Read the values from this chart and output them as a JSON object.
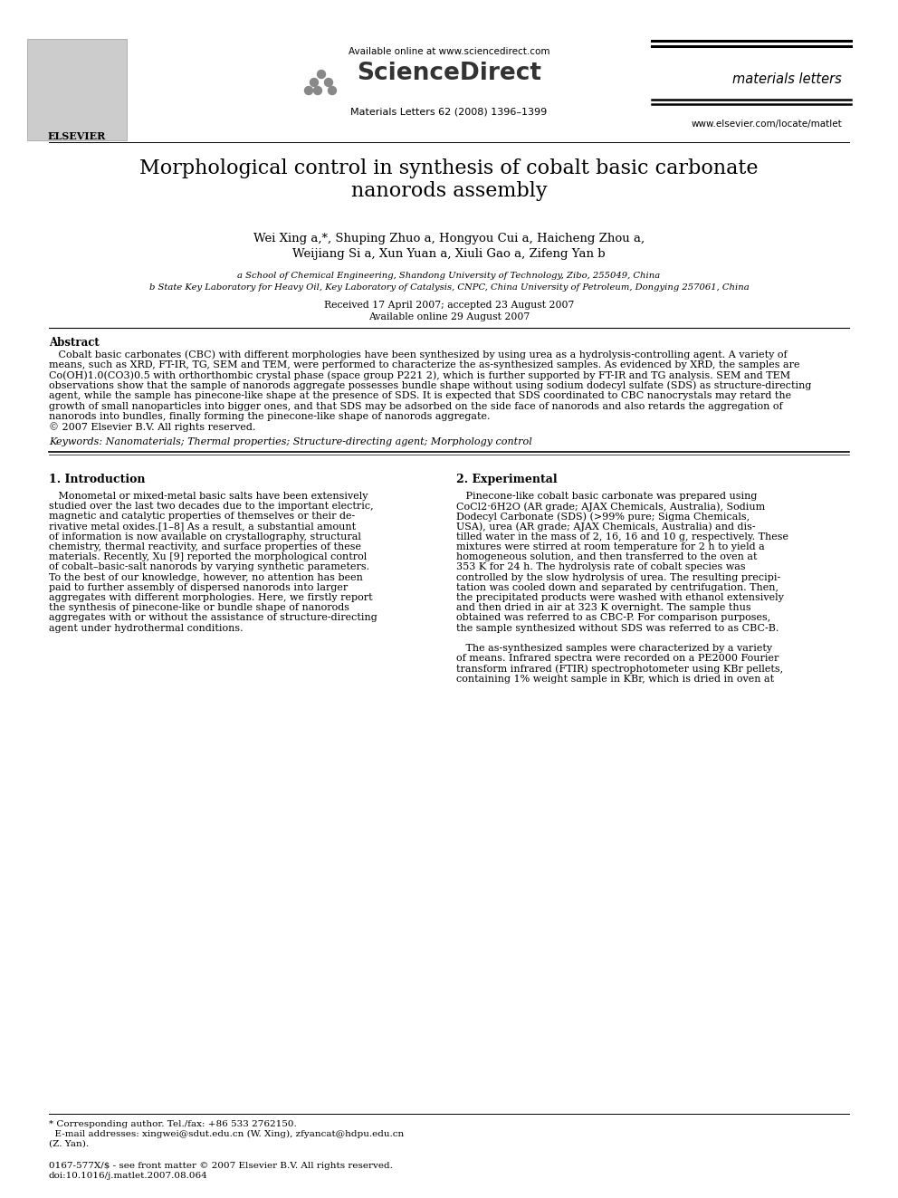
{
  "bg_color": "#ffffff",
  "header": {
    "available_online": "Available online at www.sciencedirect.com",
    "journal_name": "materials letters",
    "journal_info": "Materials Letters 62 (2008) 1396–1399",
    "journal_url": "www.elsevier.com/locate/matlet"
  },
  "title": "Morphological control in synthesis of cobalt basic carbonate\nnanorods assembly",
  "authors_line1": "Wei Xing a,*, Shuping Zhuo a, Hongyou Cui a, Haicheng Zhou a,",
  "authors_line2": "Weijiang Si a, Xun Yuan a, Xiuli Gao a, Zifeng Yan b",
  "affil_a": "a School of Chemical Engineering, Shandong University of Technology, Zibo, 255049, China",
  "affil_b": "b State Key Laboratory for Heavy Oil, Key Laboratory of Catalysis, CNPC, China University of Petroleum, Dongying 257061, China",
  "dates_line1": "Received 17 April 2007; accepted 23 August 2007",
  "dates_line2": "Available online 29 August 2007",
  "abstract_title": "Abstract",
  "abstract_lines": [
    "   Cobalt basic carbonates (CBC) with different morphologies have been synthesized by using urea as a hydrolysis-controlling agent. A variety of",
    "means, such as XRD, FT-IR, TG, SEM and TEM, were performed to characterize the as-synthesized samples. As evidenced by XRD, the samples are",
    "Co(OH)1.0(CO3)0.5 with orthorthombic crystal phase (space group P221 2), which is further supported by FT-IR and TG analysis. SEM and TEM",
    "observations show that the sample of nanorods aggregate possesses bundle shape without using sodium dodecyl sulfate (SDS) as structure-directing",
    "agent, while the sample has pinecone-like shape at the presence of SDS. It is expected that SDS coordinated to CBC nanocrystals may retard the",
    "growth of small nanoparticles into bigger ones, and that SDS may be adsorbed on the side face of nanorods and also retards the aggregation of",
    "nanorods into bundles, finally forming the pinecone-like shape of nanorods aggregate.",
    "© 2007 Elsevier B.V. All rights reserved."
  ],
  "keywords": "Keywords: Nanomaterials; Thermal properties; Structure-directing agent; Morphology control",
  "section1_title": "1. Introduction",
  "section2_title": "2. Experimental",
  "section1_lines": [
    "   Monometal or mixed-metal basic salts have been extensively",
    "studied over the last two decades due to the important electric,",
    "magnetic and catalytic properties of themselves or their de-",
    "rivative metal oxides.[1–8] As a result, a substantial amount",
    "of information is now available on crystallography, structural",
    "chemistry, thermal reactivity, and surface properties of these",
    "materials. Recently, Xu [9] reported the morphological control",
    "of cobalt–basic-salt nanorods by varying synthetic parameters.",
    "To the best of our knowledge, however, no attention has been",
    "paid to further assembly of dispersed nanorods into larger",
    "aggregates with different morphologies. Here, we firstly report",
    "the synthesis of pinecone-like or bundle shape of nanorods",
    "aggregates with or without the assistance of structure-directing",
    "agent under hydrothermal conditions."
  ],
  "section2_lines": [
    "   Pinecone-like cobalt basic carbonate was prepared using",
    "CoCl2·6H2O (AR grade; AJAX Chemicals, Australia), Sodium",
    "Dodecyl Carbonate (SDS) (>99% pure; Sigma Chemicals,",
    "USA), urea (AR grade; AJAX Chemicals, Australia) and dis-",
    "tilled water in the mass of 2, 16, 16 and 10 g, respectively. These",
    "mixtures were stirred at room temperature for 2 h to yield a",
    "homogeneous solution, and then transferred to the oven at",
    "353 K for 24 h. The hydrolysis rate of cobalt species was",
    "controlled by the slow hydrolysis of urea. The resulting precipi-",
    "tation was cooled down and separated by centrifugation. Then,",
    "the precipitated products were washed with ethanol extensively",
    "and then dried in air at 323 K overnight. The sample thus",
    "obtained was referred to as CBC-P. For comparison purposes,",
    "the sample synthesized without SDS was referred to as CBC-B.",
    "",
    "   The as-synthesized samples were characterized by a variety",
    "of means. Infrared spectra were recorded on a PE2000 Fourier",
    "transform infrared (FTIR) spectrophotometer using KBr pellets,",
    "containing 1% weight sample in KBr, which is dried in oven at"
  ],
  "footnote_star_lines": [
    "* Corresponding author. Tel./fax: +86 533 2762150.",
    "  E-mail addresses: xingwei@sdut.edu.cn (W. Xing), zfyancat@hdpu.edu.cn",
    "(Z. Yan)."
  ],
  "footnote_bottom_lines": [
    "0167-577X/$ - see front matter © 2007 Elsevier B.V. All rights reserved.",
    "doi:10.1016/j.matlet.2007.08.064"
  ]
}
